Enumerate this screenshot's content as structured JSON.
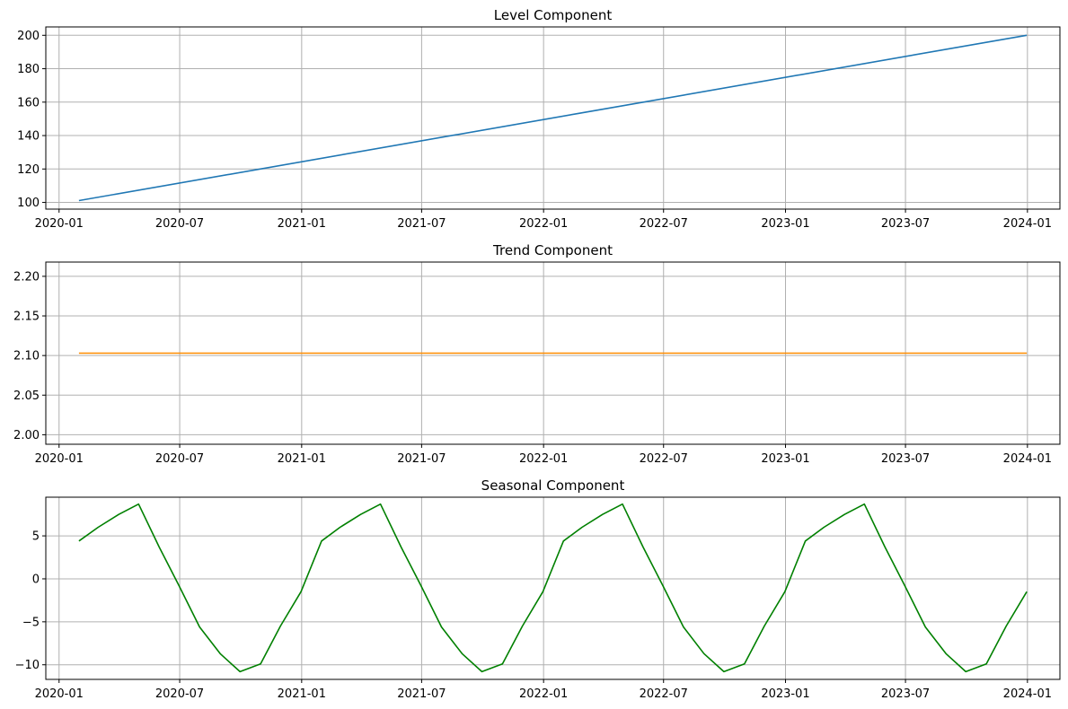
{
  "chart_data": [
    {
      "type": "line",
      "title": "Level Component",
      "color": "#1f77b4",
      "x_ticks": [
        "2020-01",
        "2020-07",
        "2021-01",
        "2021-07",
        "2022-01",
        "2022-07",
        "2023-01",
        "2023-07",
        "2024-01"
      ],
      "y_ticks": [
        "100",
        "120",
        "140",
        "160",
        "180",
        "200"
      ],
      "ylim": [
        96,
        205
      ],
      "grid": true,
      "x": [
        "2020-01-31",
        "2023-12-31"
      ],
      "y": [
        101.1,
        200.0
      ]
    },
    {
      "type": "line",
      "title": "Trend Component",
      "color": "#ff8c00",
      "x_ticks": [
        "2020-01",
        "2020-07",
        "2021-01",
        "2021-07",
        "2022-01",
        "2022-07",
        "2023-01",
        "2023-07",
        "2024-01"
      ],
      "y_ticks": [
        "2.00",
        "2.05",
        "2.10",
        "2.15",
        "2.20"
      ],
      "ylim": [
        1.988,
        2.218
      ],
      "grid": true,
      "x": [
        "2020-01-31",
        "2023-12-31"
      ],
      "y": [
        2.103,
        2.103
      ]
    },
    {
      "type": "line",
      "title": "Seasonal Component",
      "color": "#008000",
      "x_ticks": [
        "2020-01",
        "2020-07",
        "2021-01",
        "2021-07",
        "2022-01",
        "2022-07",
        "2023-01",
        "2023-07",
        "2024-01"
      ],
      "y_ticks": [
        "5",
        "0",
        "−5",
        "−10"
      ],
      "ylim": [
        -11.7,
        9.5
      ],
      "grid": true,
      "x": [
        "2020-01-31",
        "2020-02-29",
        "2020-03-31",
        "2020-04-30",
        "2020-05-31",
        "2020-06-30",
        "2020-07-31",
        "2020-08-31",
        "2020-09-30",
        "2020-10-31",
        "2020-11-30",
        "2020-12-31",
        "2021-01-31",
        "2021-02-28",
        "2021-03-31",
        "2021-04-30",
        "2021-05-31",
        "2021-06-30",
        "2021-07-31",
        "2021-08-31",
        "2021-09-30",
        "2021-10-31",
        "2021-11-30",
        "2021-12-31",
        "2022-01-31",
        "2022-02-28",
        "2022-03-31",
        "2022-04-30",
        "2022-05-31",
        "2022-06-30",
        "2022-07-31",
        "2022-08-31",
        "2022-09-30",
        "2022-10-31",
        "2022-11-30",
        "2022-12-31",
        "2023-01-31",
        "2023-02-28",
        "2023-03-31",
        "2023-04-30",
        "2023-05-31",
        "2023-06-30",
        "2023-07-31",
        "2023-08-31",
        "2023-09-30",
        "2023-10-31",
        "2023-11-30",
        "2023-12-31"
      ],
      "y": [
        4.4,
        6.0,
        7.5,
        8.7,
        3.7,
        -0.8,
        -5.6,
        -8.7,
        -10.8,
        -9.9,
        -5.5,
        -1.5,
        4.4,
        6.0,
        7.5,
        8.7,
        3.7,
        -0.8,
        -5.6,
        -8.7,
        -10.8,
        -9.9,
        -5.5,
        -1.5,
        4.4,
        6.0,
        7.5,
        8.7,
        3.7,
        -0.8,
        -5.6,
        -8.7,
        -10.8,
        -9.9,
        -5.5,
        -1.5,
        4.4,
        6.0,
        7.5,
        8.7,
        3.7,
        -0.8,
        -5.6,
        -8.7,
        -10.8,
        -9.9,
        -5.5,
        -1.5
      ]
    }
  ]
}
